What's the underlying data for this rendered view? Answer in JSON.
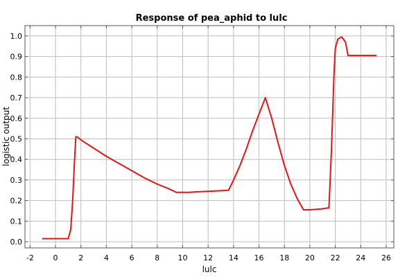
{
  "chart_data": {
    "type": "line",
    "title": "Response of pea_aphid to lulc",
    "xlabel": "lulc",
    "ylabel": "logistic output",
    "xlim": [
      -2.4,
      26.6
    ],
    "ylim": [
      -0.03,
      1.05
    ],
    "xticks": [
      -2,
      0,
      2,
      4,
      6,
      8,
      10,
      12,
      14,
      16,
      18,
      20,
      22,
      24,
      26
    ],
    "xtick_labels": [
      "-2",
      "0",
      "2",
      "4",
      "6",
      "8",
      "10",
      "12",
      "14",
      "16",
      "18",
      "20",
      "22",
      "24",
      "26"
    ],
    "yticks": [
      0.0,
      0.1,
      0.2,
      0.3,
      0.4,
      0.5,
      0.6,
      0.7,
      0.8,
      0.9,
      1.0
    ],
    "ytick_labels": [
      "0.0",
      "0.1",
      "0.2",
      "0.3",
      "0.4",
      "0.5",
      "0.6",
      "0.7",
      "0.8",
      "0.9",
      "1.0"
    ],
    "grid": true,
    "legend": "none",
    "series": [
      {
        "color": "#ee1111",
        "x": [
          -1.0,
          0.0,
          1.0,
          1.2,
          1.35,
          1.5,
          1.6,
          1.7,
          2.0,
          3.0,
          4.0,
          5.0,
          6.0,
          7.0,
          8.0,
          9.0,
          9.5,
          10.0,
          10.5,
          11.0,
          12.0,
          13.0,
          13.6,
          14.0,
          14.5,
          15.0,
          15.5,
          16.0,
          16.5,
          17.0,
          17.5,
          18.0,
          18.5,
          19.0,
          19.5,
          20.0,
          21.0,
          21.5,
          21.7,
          21.9,
          22.0,
          22.2,
          22.5,
          22.8,
          23.0,
          23.5,
          24.0,
          25.2
        ],
        "y": [
          0.015,
          0.015,
          0.015,
          0.06,
          0.2,
          0.4,
          0.51,
          0.51,
          0.495,
          0.455,
          0.415,
          0.38,
          0.345,
          0.31,
          0.28,
          0.255,
          0.24,
          0.24,
          0.24,
          0.242,
          0.245,
          0.248,
          0.25,
          0.3,
          0.37,
          0.45,
          0.54,
          0.62,
          0.7,
          0.6,
          0.48,
          0.37,
          0.28,
          0.21,
          0.155,
          0.155,
          0.16,
          0.165,
          0.45,
          0.82,
          0.94,
          0.985,
          0.995,
          0.97,
          0.905,
          0.905,
          0.905,
          0.905
        ]
      }
    ]
  }
}
